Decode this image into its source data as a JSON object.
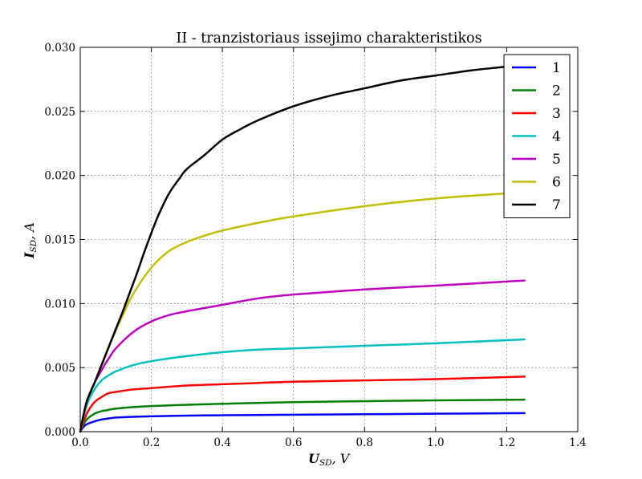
{
  "chart_data": {
    "type": "line",
    "title": "II - tranzistoriaus issejimo charakteristikos",
    "xlabel": {
      "main": "U",
      "sub": "SD",
      "unit": ", V"
    },
    "ylabel": {
      "main": "I",
      "sub": "SD",
      "unit": ", A"
    },
    "xlim": [
      0.0,
      1.4
    ],
    "ylim": [
      0.0,
      0.03
    ],
    "xticks": [
      0.0,
      0.2,
      0.4,
      0.6,
      0.8,
      1.0,
      1.2,
      1.4
    ],
    "xtick_labels": [
      "0.0",
      "0.2",
      "0.4",
      "0.6",
      "0.8",
      "1.0",
      "1.2",
      "1.4"
    ],
    "yticks": [
      0.0,
      0.005,
      0.01,
      0.015,
      0.02,
      0.025,
      0.03
    ],
    "ytick_labels": [
      "0.000",
      "0.005",
      "0.010",
      "0.015",
      "0.020",
      "0.025",
      "0.030"
    ],
    "grid": true,
    "legend_position": "top-right",
    "series": [
      {
        "name": "1",
        "color": "#0000ff",
        "x": [
          0,
          0.01,
          0.02,
          0.04,
          0.06,
          0.08,
          0.1,
          0.15,
          0.2,
          0.3,
          0.4,
          0.5,
          0.6,
          0.8,
          1.0,
          1.25
        ],
        "y": [
          0,
          0.0004,
          0.0006,
          0.0008,
          0.00095,
          0.00103,
          0.0011,
          0.00116,
          0.0012,
          0.00125,
          0.00128,
          0.0013,
          0.00132,
          0.00136,
          0.0014,
          0.00145
        ]
      },
      {
        "name": "2",
        "color": "#008000",
        "x": [
          0,
          0.01,
          0.02,
          0.04,
          0.06,
          0.08,
          0.1,
          0.15,
          0.2,
          0.3,
          0.4,
          0.5,
          0.6,
          0.8,
          1.0,
          1.25
        ],
        "y": [
          0,
          0.0006,
          0.001,
          0.0014,
          0.0016,
          0.0017,
          0.0018,
          0.00192,
          0.002,
          0.0021,
          0.00218,
          0.00224,
          0.0023,
          0.00238,
          0.00244,
          0.0025
        ]
      },
      {
        "name": "3",
        "color": "#ff0000",
        "x": [
          0,
          0.01,
          0.02,
          0.04,
          0.06,
          0.08,
          0.1,
          0.15,
          0.2,
          0.3,
          0.4,
          0.5,
          0.6,
          0.8,
          1.0,
          1.25
        ],
        "y": [
          0,
          0.0008,
          0.0015,
          0.0023,
          0.0027,
          0.003,
          0.0031,
          0.0033,
          0.0034,
          0.0036,
          0.0037,
          0.0038,
          0.0039,
          0.004,
          0.0041,
          0.0043
        ]
      },
      {
        "name": "4",
        "color": "#00bfbf",
        "x": [
          0,
          0.01,
          0.02,
          0.04,
          0.06,
          0.08,
          0.1,
          0.15,
          0.2,
          0.3,
          0.4,
          0.5,
          0.6,
          0.8,
          1.0,
          1.25
        ],
        "y": [
          0,
          0.0012,
          0.0022,
          0.0033,
          0.004,
          0.0044,
          0.0047,
          0.0052,
          0.0055,
          0.0059,
          0.0062,
          0.0064,
          0.0065,
          0.0067,
          0.0069,
          0.0072
        ]
      },
      {
        "name": "5",
        "color": "#bf00bf",
        "x": [
          0,
          0.01,
          0.02,
          0.04,
          0.06,
          0.08,
          0.1,
          0.15,
          0.2,
          0.25,
          0.3,
          0.4,
          0.5,
          0.6,
          0.8,
          1.0,
          1.25
        ],
        "y": [
          0,
          0.0014,
          0.0025,
          0.0038,
          0.0048,
          0.0057,
          0.0065,
          0.0078,
          0.0086,
          0.0091,
          0.0094,
          0.0099,
          0.0104,
          0.0107,
          0.0111,
          0.0114,
          0.0118
        ]
      },
      {
        "name": "6",
        "color": "#bfbf00",
        "x": [
          0,
          0.01,
          0.02,
          0.04,
          0.06,
          0.08,
          0.1,
          0.12,
          0.15,
          0.2,
          0.25,
          0.3,
          0.35,
          0.4,
          0.5,
          0.6,
          0.8,
          1.0,
          1.2,
          1.25
        ],
        "y": [
          0,
          0.0014,
          0.0025,
          0.0038,
          0.0052,
          0.0066,
          0.0079,
          0.0091,
          0.0108,
          0.0128,
          0.0141,
          0.0148,
          0.0153,
          0.0157,
          0.0163,
          0.0168,
          0.0176,
          0.0182,
          0.0186,
          0.0187
        ]
      },
      {
        "name": "7",
        "color": "#000000",
        "x": [
          0,
          0.01,
          0.02,
          0.04,
          0.06,
          0.08,
          0.1,
          0.12,
          0.14,
          0.16,
          0.18,
          0.2,
          0.22,
          0.25,
          0.28,
          0.3,
          0.35,
          0.4,
          0.45,
          0.5,
          0.6,
          0.7,
          0.8,
          0.9,
          1.0,
          1.1,
          1.2,
          1.25
        ],
        "y": [
          0,
          0.0014,
          0.0025,
          0.0038,
          0.0052,
          0.0066,
          0.008,
          0.0094,
          0.0109,
          0.0124,
          0.014,
          0.0155,
          0.0169,
          0.0186,
          0.0198,
          0.0205,
          0.0216,
          0.0228,
          0.0236,
          0.0243,
          0.0254,
          0.0262,
          0.0268,
          0.0274,
          0.0278,
          0.0282,
          0.0285,
          0.0287
        ]
      }
    ]
  }
}
